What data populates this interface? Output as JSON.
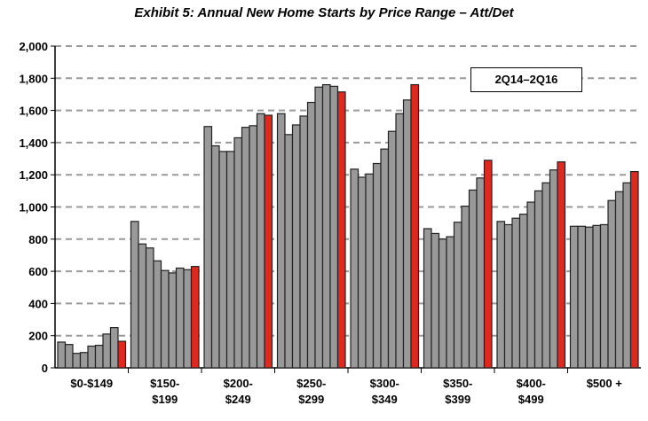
{
  "chart_data": {
    "type": "bar",
    "title": "Exhibit 5: Annual New Home Starts by Price Range – Att/Det",
    "legend_label": "2Q14–2Q16",
    "legend_position": "top-right",
    "ylim": [
      0,
      2000
    ],
    "yticks": [
      0,
      200,
      400,
      600,
      800,
      1000,
      1200,
      1400,
      1600,
      1800,
      2000
    ],
    "ytick_labels": [
      "0",
      "200",
      "400",
      "600",
      "800",
      "1,000",
      "1,200",
      "1,400",
      "1,600",
      "1,800",
      "2,000"
    ],
    "grid": true,
    "categories": [
      [
        "$0-$149"
      ],
      [
        "$150-",
        "$199"
      ],
      [
        "$200-",
        "$249"
      ],
      [
        "$250-",
        "$299"
      ],
      [
        "$300-",
        "$349"
      ],
      [
        "$350-",
        "$399"
      ],
      [
        "$400-",
        "$499"
      ],
      [
        "$500 +"
      ]
    ],
    "series_note": "9 quarterly bars per category; last bar (highlighted) is latest quarter",
    "colors": {
      "gray": "#999999",
      "highlight": "#e0281e"
    },
    "values": [
      [
        160,
        145,
        90,
        95,
        135,
        140,
        210,
        250,
        165
      ],
      [
        910,
        770,
        745,
        665,
        605,
        590,
        620,
        610,
        630
      ],
      [
        1500,
        1380,
        1345,
        1345,
        1430,
        1495,
        1505,
        1580,
        1570
      ],
      [
        1580,
        1450,
        1510,
        1565,
        1650,
        1745,
        1760,
        1750,
        1715
      ],
      [
        1235,
        1185,
        1205,
        1270,
        1360,
        1470,
        1580,
        1665,
        1760
      ],
      [
        865,
        835,
        800,
        815,
        905,
        1005,
        1105,
        1180,
        1290
      ],
      [
        910,
        890,
        930,
        955,
        1030,
        1100,
        1150,
        1230,
        1280
      ],
      [
        880,
        880,
        875,
        885,
        890,
        1040,
        1095,
        1150,
        1220
      ]
    ]
  }
}
